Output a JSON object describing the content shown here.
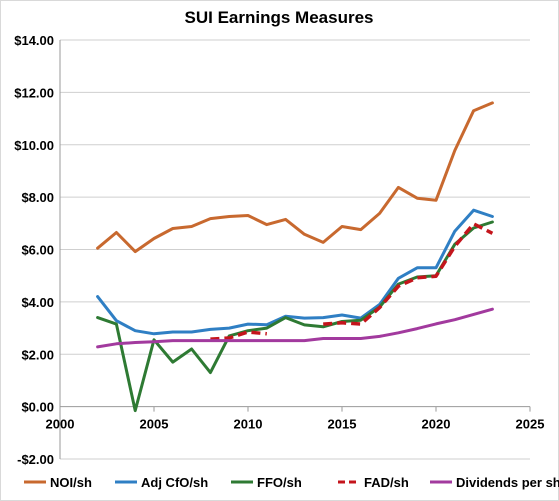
{
  "chart_data": {
    "type": "line",
    "title": "SUI Earnings Measures",
    "xlim": [
      2000,
      2025
    ],
    "ylim": [
      -2,
      14
    ],
    "x_ticks": [
      2000,
      2005,
      2010,
      2015,
      2020,
      2025
    ],
    "x_tick_labels": [
      "2000",
      "2005",
      "2010",
      "2015",
      "2020",
      "2025"
    ],
    "y_ticks": [
      -2,
      0,
      2,
      4,
      6,
      8,
      10,
      12,
      14
    ],
    "y_tick_labels": [
      "-$2.00",
      "$0.00",
      "$2.00",
      "$4.00",
      "$6.00",
      "$8.00",
      "$10.00",
      "$12.00",
      "$14.00"
    ],
    "grid": "horizontal",
    "legend_position": "bottom",
    "series": [
      {
        "name": "NOI/sh",
        "color": "#c8692f",
        "dash": "solid",
        "x": [
          2002,
          2003,
          2004,
          2005,
          2006,
          2007,
          2008,
          2009,
          2010,
          2011,
          2012,
          2013,
          2014,
          2015,
          2016,
          2017,
          2018,
          2019,
          2020,
          2021,
          2022,
          2023
        ],
        "y": [
          6.05,
          6.65,
          5.92,
          6.42,
          6.8,
          6.88,
          7.18,
          7.26,
          7.3,
          6.95,
          7.15,
          6.58,
          6.27,
          6.88,
          6.76,
          7.38,
          8.37,
          7.96,
          7.88,
          9.78,
          11.3,
          11.6
        ]
      },
      {
        "name": "Adj CfO/sh",
        "color": "#2f7fc4",
        "dash": "solid",
        "x": [
          2002,
          2003,
          2004,
          2005,
          2006,
          2007,
          2008,
          2009,
          2010,
          2011,
          2012,
          2013,
          2014,
          2015,
          2016,
          2017,
          2018,
          2019,
          2020,
          2021,
          2022,
          2023
        ],
        "y": [
          4.2,
          3.28,
          2.9,
          2.78,
          2.85,
          2.85,
          2.95,
          3.0,
          3.15,
          3.13,
          3.45,
          3.38,
          3.4,
          3.5,
          3.38,
          3.9,
          4.9,
          5.3,
          5.3,
          6.7,
          7.5,
          7.26
        ]
      },
      {
        "name": "FFO/sh",
        "color": "#2e7a33",
        "dash": "solid",
        "x": [
          2002,
          2003,
          2004,
          2005,
          2006,
          2007,
          2008,
          2009,
          2010,
          2011,
          2012,
          2013,
          2014,
          2015,
          2016,
          2017,
          2018,
          2019,
          2020,
          2021,
          2022,
          2023
        ],
        "y": [
          3.4,
          3.15,
          -0.15,
          2.55,
          1.7,
          2.2,
          1.3,
          2.7,
          2.9,
          3.0,
          3.4,
          3.12,
          3.05,
          3.25,
          3.3,
          3.8,
          4.68,
          4.95,
          5.0,
          6.2,
          6.82,
          7.05
        ]
      },
      {
        "name": "FAD/sh",
        "color": "#c4151c",
        "dash": "dashed",
        "x": [
          2008,
          2009,
          2010,
          2011,
          2014,
          2015,
          2016,
          2017,
          2018,
          2019,
          2020,
          2021,
          2022,
          2023
        ],
        "y": [
          2.58,
          2.62,
          2.85,
          2.78,
          3.15,
          3.2,
          3.15,
          3.78,
          4.6,
          4.92,
          4.98,
          6.12,
          6.98,
          6.62
        ]
      },
      {
        "name": "Dividends per share",
        "color": "#a23a9e",
        "dash": "solid",
        "x": [
          2002,
          2003,
          2004,
          2005,
          2006,
          2007,
          2008,
          2009,
          2010,
          2011,
          2012,
          2013,
          2014,
          2015,
          2016,
          2017,
          2018,
          2019,
          2020,
          2021,
          2022,
          2023
        ],
        "y": [
          2.28,
          2.4,
          2.45,
          2.48,
          2.52,
          2.52,
          2.52,
          2.52,
          2.52,
          2.52,
          2.52,
          2.52,
          2.6,
          2.6,
          2.6,
          2.68,
          2.82,
          2.98,
          3.16,
          3.32,
          3.52,
          3.72
        ]
      }
    ]
  }
}
